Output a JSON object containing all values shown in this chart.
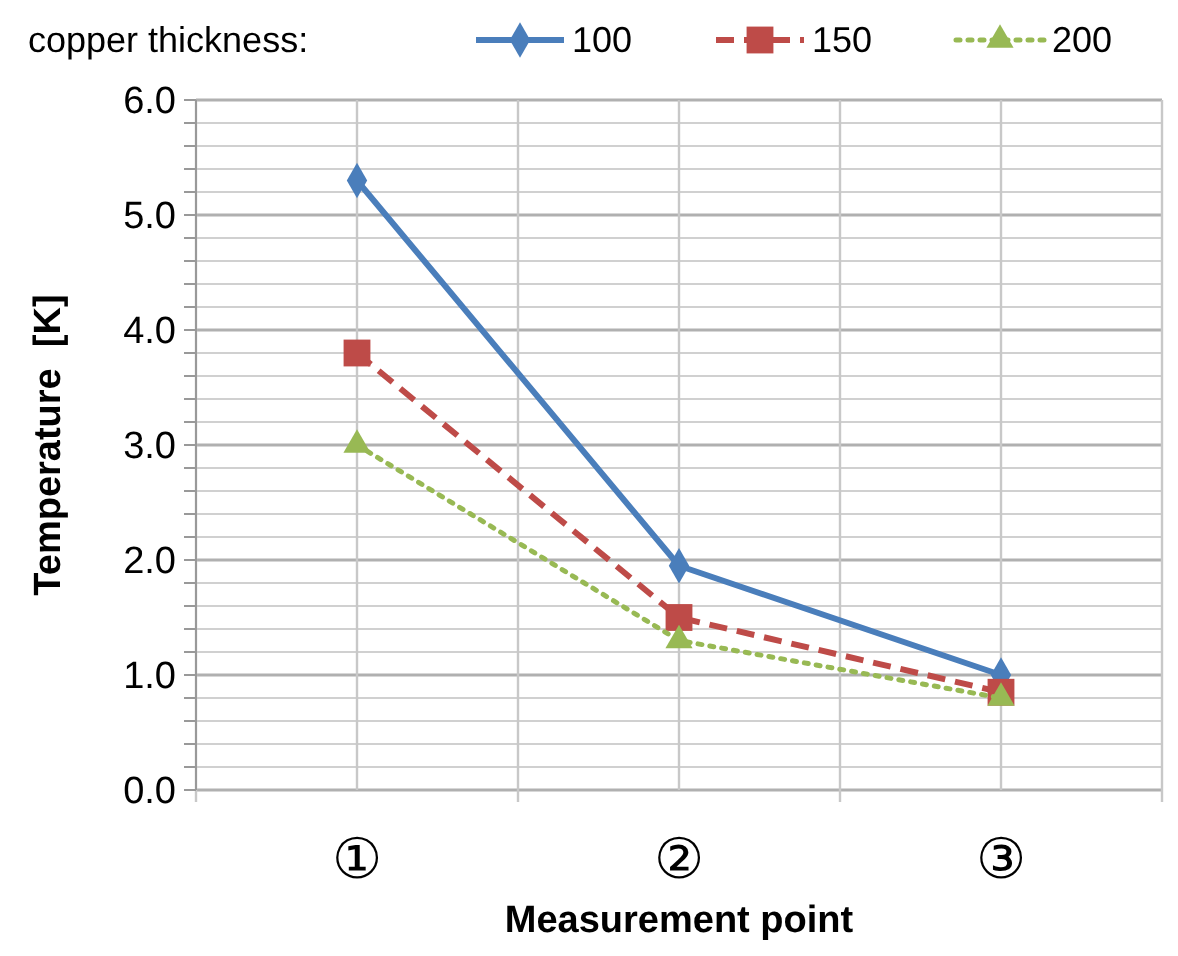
{
  "chart_data": {
    "type": "line",
    "xlabel": "Measurement point",
    "ylabel": "Temperature  [K]",
    "legend_title": "copper thickness:",
    "legend": "top",
    "grid": true,
    "categories": [
      "①",
      "②",
      "③"
    ],
    "ylim": [
      0,
      6
    ],
    "yticks": [
      {
        "value": 0,
        "label": "0.0"
      },
      {
        "value": 0.2,
        "label": null
      },
      {
        "value": 0.4,
        "label": null
      },
      {
        "value": 0.6,
        "label": null
      },
      {
        "value": 0.8,
        "label": null
      },
      {
        "value": 1,
        "label": "1.0"
      },
      {
        "value": 1.2,
        "label": null
      },
      {
        "value": 1.4,
        "label": null
      },
      {
        "value": 1.6,
        "label": null
      },
      {
        "value": 1.8,
        "label": null
      },
      {
        "value": 2,
        "label": "2.0"
      },
      {
        "value": 2.2,
        "label": null
      },
      {
        "value": 2.4,
        "label": null
      },
      {
        "value": 2.6,
        "label": null
      },
      {
        "value": 2.8,
        "label": null
      },
      {
        "value": 3,
        "label": "3.0"
      },
      {
        "value": 3.2,
        "label": null
      },
      {
        "value": 3.4,
        "label": null
      },
      {
        "value": 3.6,
        "label": null
      },
      {
        "value": 3.8,
        "label": null
      },
      {
        "value": 4,
        "label": "4.0"
      },
      {
        "value": 4.2,
        "label": null
      },
      {
        "value": 4.4,
        "label": null
      },
      {
        "value": 4.6,
        "label": null
      },
      {
        "value": 4.8,
        "label": null
      },
      {
        "value": 5,
        "label": "5.0"
      },
      {
        "value": 5.2,
        "label": null
      },
      {
        "value": 5.4,
        "label": null
      },
      {
        "value": 5.6,
        "label": null
      },
      {
        "value": 5.8,
        "label": null
      },
      {
        "value": 6,
        "label": "6.0"
      }
    ],
    "series": [
      {
        "name": "100",
        "color": "#4a7ebb",
        "values": [
          5.3,
          1.95,
          1.0
        ],
        "marker": "diamond",
        "line_style": "solid"
      },
      {
        "name": "150",
        "color": "#be4b48",
        "values": [
          3.8,
          1.5,
          0.85
        ],
        "marker": "square",
        "line_style": "dashed"
      },
      {
        "name": "200",
        "color": "#98b954",
        "values": [
          3.0,
          1.3,
          0.8
        ],
        "marker": "triangle",
        "line_style": "dotted"
      }
    ]
  }
}
